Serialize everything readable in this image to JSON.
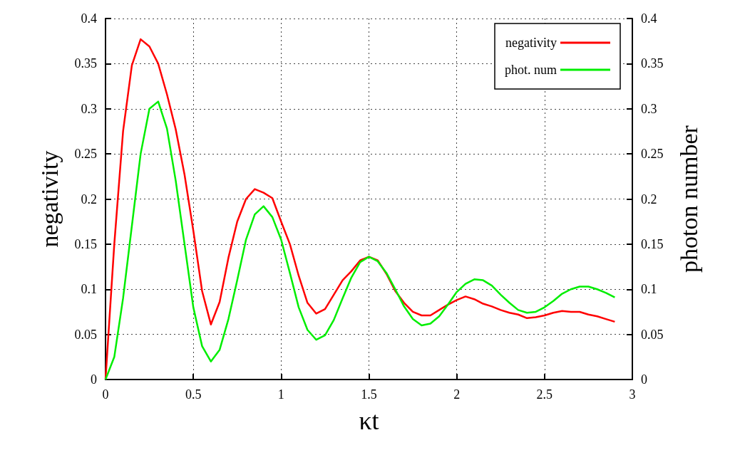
{
  "chart_data": {
    "type": "line",
    "xlabel": "κt",
    "ylabel": "negativity",
    "y2label": "photon number",
    "x": [
      0,
      0.05,
      0.1,
      0.15,
      0.2,
      0.25,
      0.3,
      0.35,
      0.4,
      0.45,
      0.5,
      0.55,
      0.6,
      0.65,
      0.7,
      0.75,
      0.8,
      0.85,
      0.9,
      0.95,
      1.0,
      1.05,
      1.1,
      1.15,
      1.2,
      1.25,
      1.3,
      1.35,
      1.4,
      1.45,
      1.5,
      1.55,
      1.6,
      1.65,
      1.7,
      1.75,
      1.8,
      1.85,
      1.9,
      1.95,
      2.0,
      2.05,
      2.1,
      2.15,
      2.2,
      2.25,
      2.3,
      2.35,
      2.4,
      2.45,
      2.5,
      2.55,
      2.6,
      2.65,
      2.7,
      2.75,
      2.8,
      2.85,
      2.9
    ],
    "series": [
      {
        "name": "negativity",
        "color": "#ff0000",
        "values": [
          0,
          0.15,
          0.275,
          0.348,
          0.377,
          0.369,
          0.35,
          0.316,
          0.277,
          0.227,
          0.165,
          0.098,
          0.061,
          0.086,
          0.135,
          0.175,
          0.2,
          0.211,
          0.207,
          0.201,
          0.175,
          0.15,
          0.115,
          0.085,
          0.073,
          0.078,
          0.094,
          0.11,
          0.12,
          0.132,
          0.136,
          0.132,
          0.117,
          0.098,
          0.085,
          0.075,
          0.071,
          0.071,
          0.077,
          0.083,
          0.088,
          0.092,
          0.089,
          0.084,
          0.081,
          0.077,
          0.074,
          0.072,
          0.068,
          0.069,
          0.071,
          0.074,
          0.076,
          0.075,
          0.075,
          0.072,
          0.07,
          0.067,
          0.064
        ]
      },
      {
        "name": "phot. num",
        "color": "#00ee00",
        "axis": "y2",
        "values": [
          0,
          0.025,
          0.09,
          0.17,
          0.25,
          0.3,
          0.308,
          0.278,
          0.22,
          0.15,
          0.08,
          0.037,
          0.02,
          0.033,
          0.067,
          0.11,
          0.155,
          0.183,
          0.192,
          0.18,
          0.155,
          0.118,
          0.08,
          0.055,
          0.044,
          0.049,
          0.066,
          0.09,
          0.113,
          0.13,
          0.136,
          0.131,
          0.118,
          0.1,
          0.081,
          0.067,
          0.06,
          0.062,
          0.07,
          0.083,
          0.097,
          0.106,
          0.111,
          0.11,
          0.104,
          0.094,
          0.085,
          0.077,
          0.074,
          0.075,
          0.08,
          0.087,
          0.095,
          0.1,
          0.103,
          0.103,
          0.1,
          0.096,
          0.091
        ]
      }
    ],
    "xlim": [
      0,
      3
    ],
    "xticks": [
      0,
      0.5,
      1,
      1.5,
      2,
      2.5,
      3
    ],
    "ylim": [
      0,
      0.4
    ],
    "yticks": [
      0,
      0.05,
      0.1,
      0.15,
      0.2,
      0.25,
      0.3,
      0.35,
      0.4
    ],
    "y2lim": [
      0,
      0.4
    ],
    "y2ticks": [
      0,
      0.05,
      0.1,
      0.15,
      0.2,
      0.25,
      0.3,
      0.35,
      0.4
    ],
    "grid": true,
    "legend": "top right",
    "marker": "none",
    "line_style": "solid"
  }
}
